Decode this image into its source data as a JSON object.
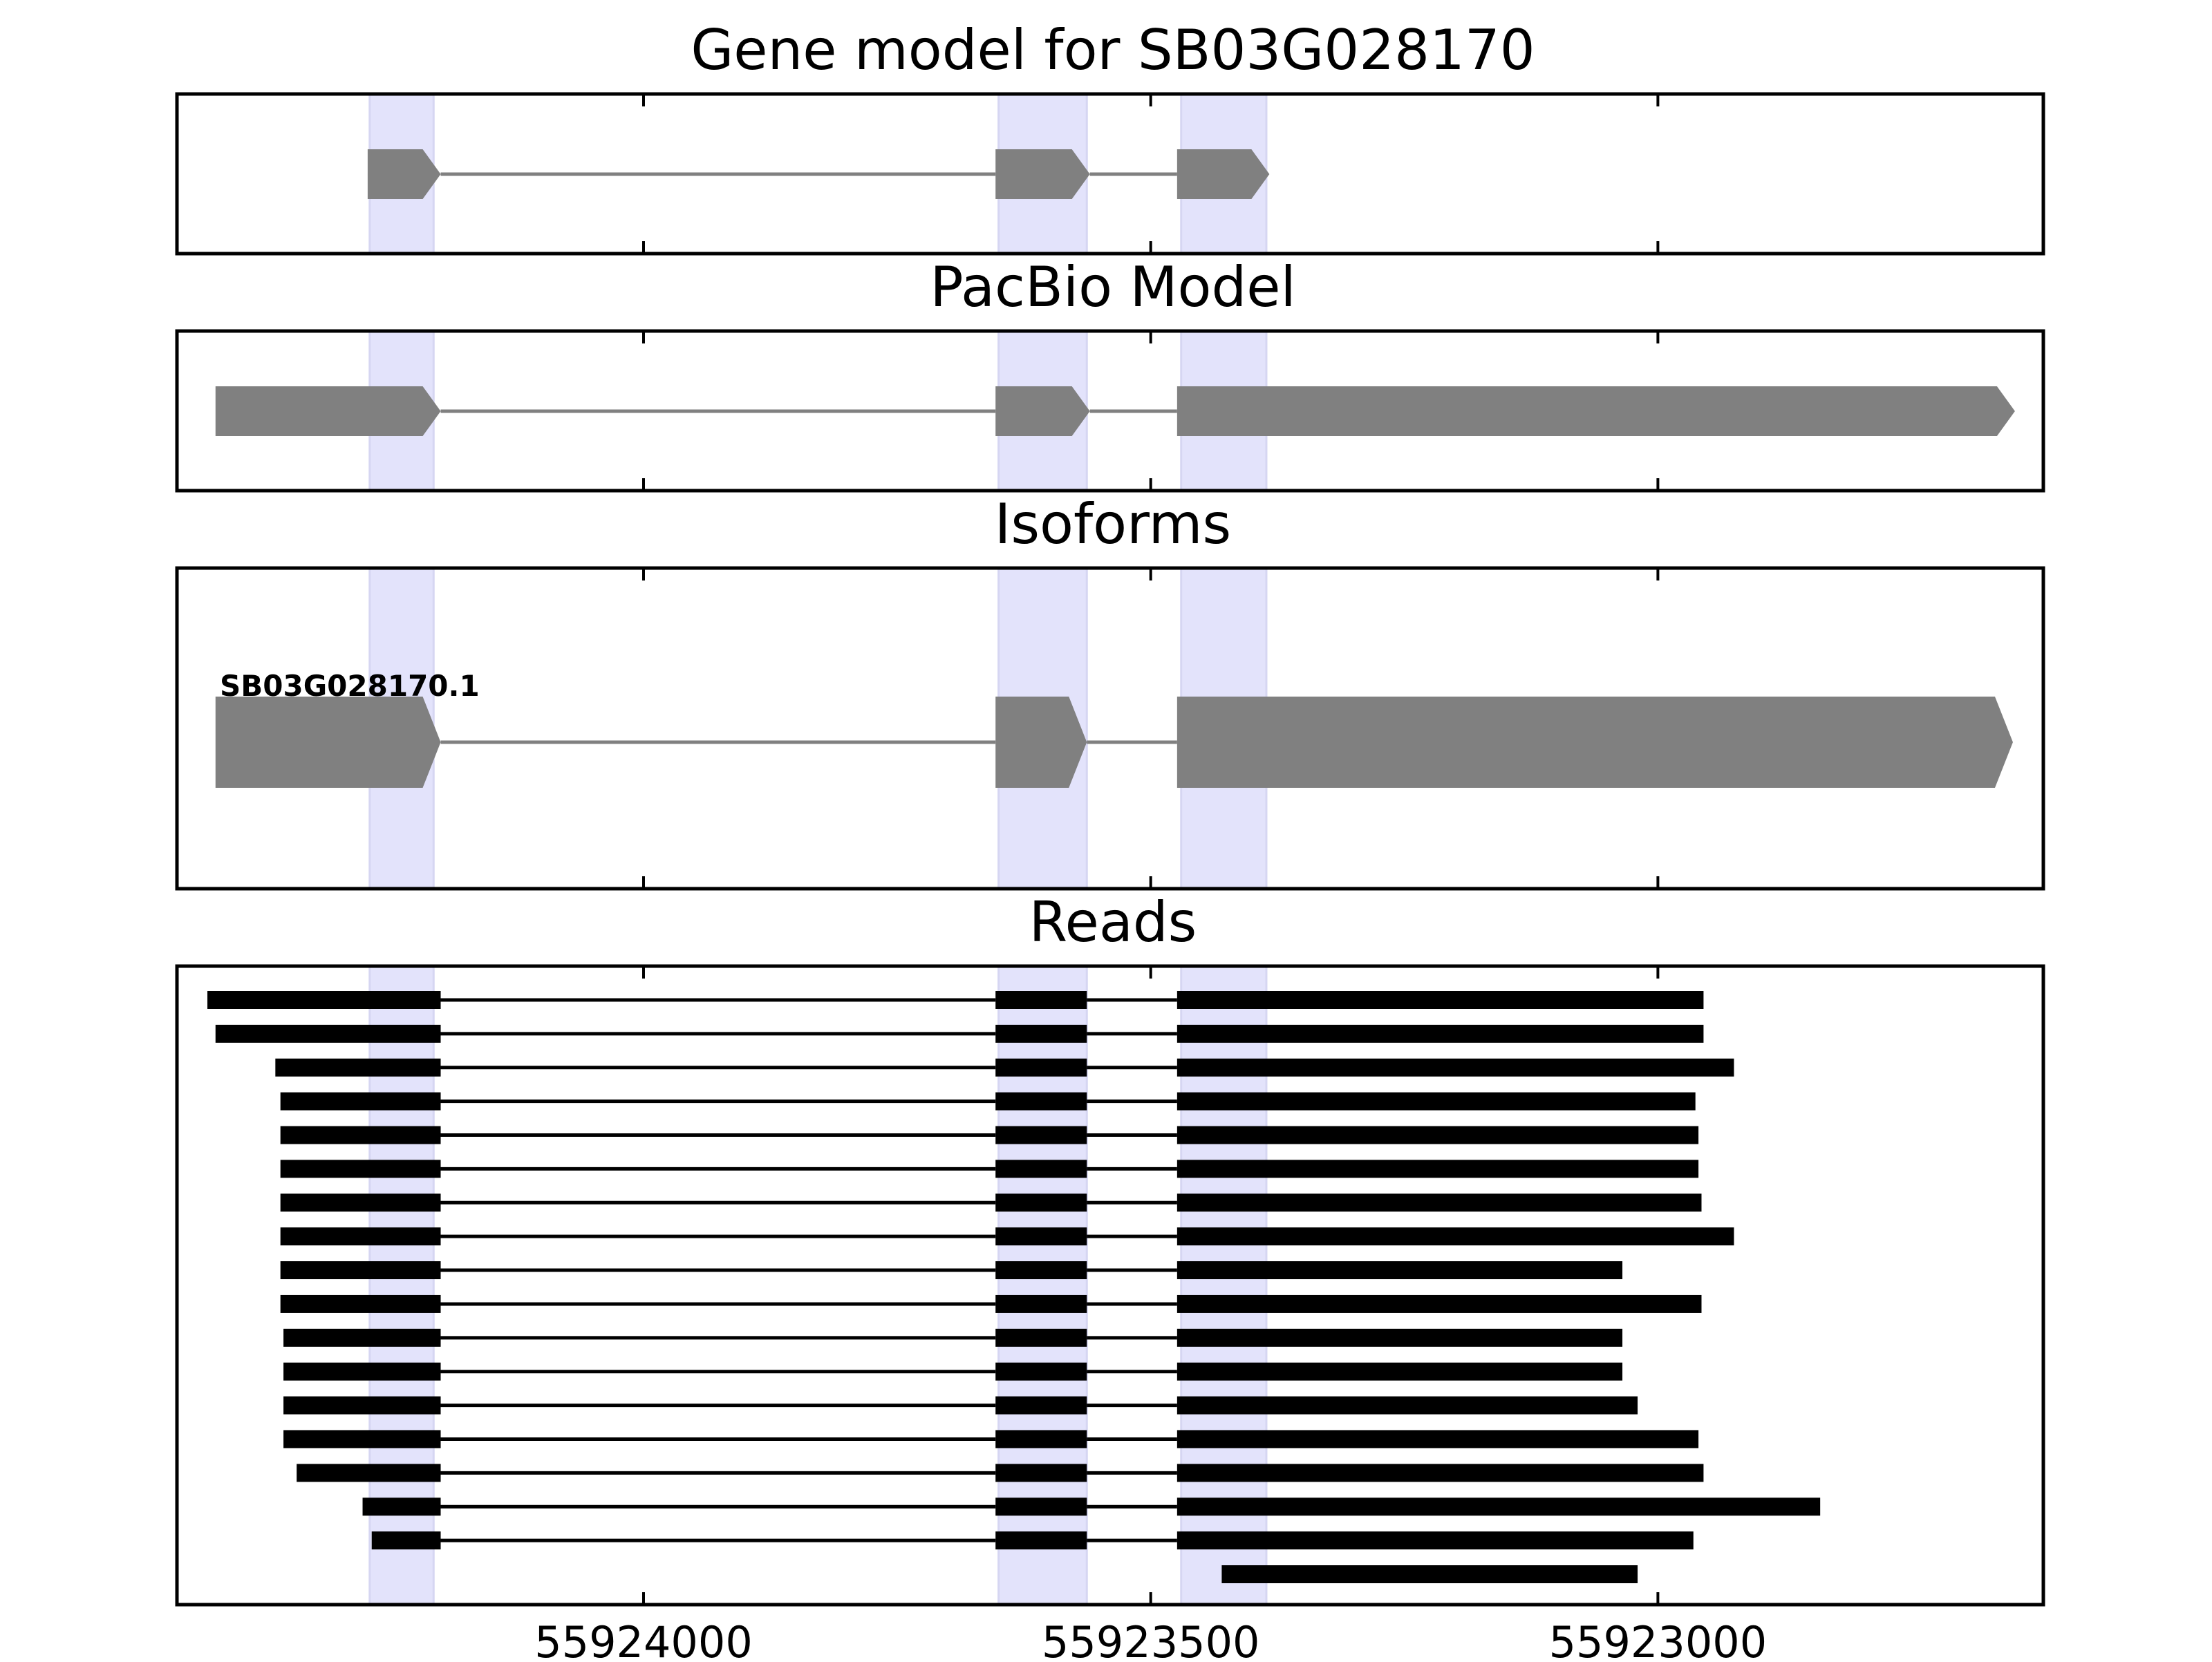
{
  "figure": {
    "panels": [
      {
        "id": "gene-model",
        "title": "Gene model for SB03G028170"
      },
      {
        "id": "pacbio-model",
        "title": "PacBio Model"
      },
      {
        "id": "isoforms",
        "title": "Isoforms"
      },
      {
        "id": "reads",
        "title": "Reads"
      }
    ],
    "x_axis": {
      "ticks": [
        {
          "value": 55924000,
          "label": "55924000"
        },
        {
          "value": 55923500,
          "label": "55923500"
        },
        {
          "value": 55923000,
          "label": "55923000"
        }
      ]
    }
  },
  "chart_data": {
    "type": "gene-structure",
    "strand": "-",
    "xlim": [
      55924460,
      55922620
    ],
    "colors": {
      "exon": "#808080",
      "intron": "#808080",
      "highlight": "#e3e3fb",
      "read": "#000000",
      "frame": "#000000"
    },
    "highlight_regions": [
      [
        55924270,
        55924207
      ],
      [
        55923650,
        55923563
      ],
      [
        55923470,
        55923386
      ]
    ],
    "gene_model": {
      "exons": [
        [
          55924272,
          55924200
        ],
        [
          55923653,
          55923560
        ],
        [
          55923474,
          55923383
        ]
      ]
    },
    "pacbio_model": {
      "exons": [
        [
          55924422,
          55924200
        ],
        [
          55923653,
          55923560
        ],
        [
          55923474,
          55922648
        ]
      ]
    },
    "isoforms": [
      {
        "label": "SB03G028170.1",
        "exons": [
          [
            55924422,
            55924200
          ],
          [
            55923653,
            55923563
          ],
          [
            55923474,
            55922650
          ]
        ]
      }
    ],
    "reads": [
      {
        "start": 55924430,
        "end": 55922955
      },
      {
        "start": 55924422,
        "end": 55922955
      },
      {
        "start": 55924363,
        "end": 55922925
      },
      {
        "start": 55924358,
        "end": 55922963
      },
      {
        "start": 55924358,
        "end": 55922960
      },
      {
        "start": 55924358,
        "end": 55922960
      },
      {
        "start": 55924358,
        "end": 55922957
      },
      {
        "start": 55924358,
        "end": 55922925
      },
      {
        "start": 55924358,
        "end": 55923035
      },
      {
        "start": 55924358,
        "end": 55922957
      },
      {
        "start": 55924355,
        "end": 55923035
      },
      {
        "start": 55924355,
        "end": 55923035
      },
      {
        "start": 55924355,
        "end": 55923020
      },
      {
        "start": 55924355,
        "end": 55922960
      },
      {
        "start": 55924342,
        "end": 55922955
      },
      {
        "start": 55924277,
        "end": 55922840
      },
      {
        "start": 55924268,
        "end": 55922965
      },
      {
        "start": 55923430,
        "end": 55923020
      }
    ],
    "read_exon_blocks": [
      [
        55924200,
        55923653,
        55923563,
        55923474
      ]
    ]
  }
}
